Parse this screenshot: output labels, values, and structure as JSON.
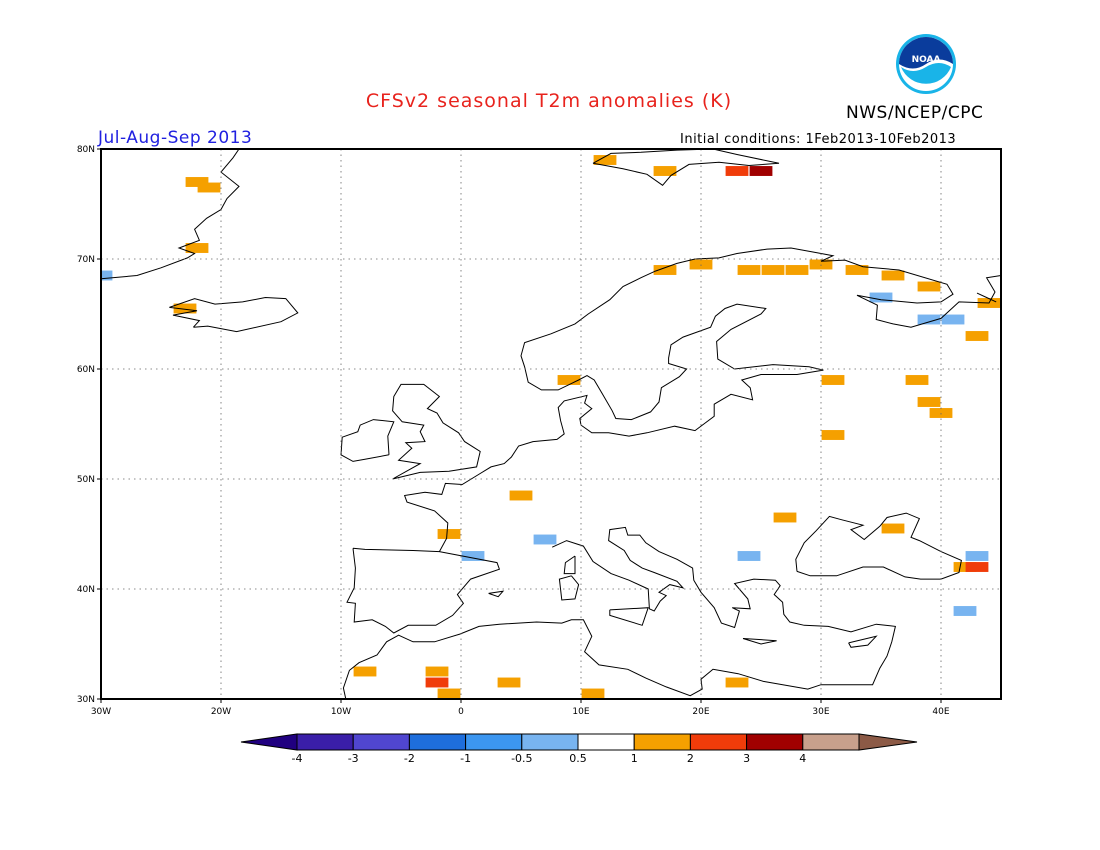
{
  "header": {
    "title": "CFSv2 seasonal T2m anomalies (K)",
    "season": "Jul-Aug-Sep 2013",
    "agency": "NWS/NCEP/CPC",
    "initial_conditions": "Initial conditions: 1Feb2013-10Feb2013",
    "logo_text": "NOAA"
  },
  "map": {
    "lon_range": [
      -30,
      45
    ],
    "lat_range": [
      30,
      80
    ],
    "lat_ticks": [
      "30N",
      "40N",
      "50N",
      "60N",
      "70N",
      "80N"
    ],
    "lon_ticks": [
      "30W",
      "20W",
      "10W",
      "0",
      "10E",
      "20E",
      "30E",
      "40E"
    ],
    "grid": "dotted",
    "anomaly_cells": [
      {
        "lon": -22,
        "lat": 77,
        "v": 0.7
      },
      {
        "lon": -21,
        "lat": 76.5,
        "v": 0.7
      },
      {
        "lon": -22,
        "lat": 71,
        "v": 0.7
      },
      {
        "lon": -23,
        "lat": 65.5,
        "v": 0.7
      },
      {
        "lon": -30,
        "lat": 68.5,
        "v": -0.7
      },
      {
        "lon": 12,
        "lat": 79,
        "v": 0.7
      },
      {
        "lon": 17,
        "lat": 78,
        "v": 0.7
      },
      {
        "lon": 23,
        "lat": 78,
        "v": 1.5
      },
      {
        "lon": 25,
        "lat": 78,
        "v": 2.5
      },
      {
        "lon": 17,
        "lat": 69,
        "v": 0.7
      },
      {
        "lon": 20,
        "lat": 69.5,
        "v": 0.7
      },
      {
        "lon": 24,
        "lat": 69,
        "v": 0.7
      },
      {
        "lon": 26,
        "lat": 69,
        "v": 0.7
      },
      {
        "lon": 28,
        "lat": 69,
        "v": 0.7
      },
      {
        "lon": 30,
        "lat": 69.5,
        "v": 0.7
      },
      {
        "lon": 33,
        "lat": 69,
        "v": 0.7
      },
      {
        "lon": 36,
        "lat": 68.5,
        "v": 0.7
      },
      {
        "lon": 39,
        "lat": 67.5,
        "v": 0.7
      },
      {
        "lon": 44,
        "lat": 66,
        "v": 0.7
      },
      {
        "lon": 43,
        "lat": 63,
        "v": 0.7
      },
      {
        "lon": 35,
        "lat": 66.5,
        "v": -0.7
      },
      {
        "lon": 39,
        "lat": 64.5,
        "v": -0.7
      },
      {
        "lon": 41,
        "lat": 64.5,
        "v": -0.7
      },
      {
        "lon": 9,
        "lat": 59,
        "v": 0.7
      },
      {
        "lon": 31,
        "lat": 59,
        "v": 0.7
      },
      {
        "lon": 38,
        "lat": 59,
        "v": 0.7
      },
      {
        "lon": 39,
        "lat": 57,
        "v": 0.7
      },
      {
        "lon": 40,
        "lat": 56,
        "v": 0.7
      },
      {
        "lon": 31,
        "lat": 54,
        "v": 0.7
      },
      {
        "lon": 5,
        "lat": 48.5,
        "v": 0.7
      },
      {
        "lon": 27,
        "lat": 46.5,
        "v": 0.7
      },
      {
        "lon": 36,
        "lat": 45.5,
        "v": 0.7
      },
      {
        "lon": -1,
        "lat": 45,
        "v": 0.7
      },
      {
        "lon": 1,
        "lat": 43,
        "v": -0.7
      },
      {
        "lon": 7,
        "lat": 44.5,
        "v": -0.7
      },
      {
        "lon": 24,
        "lat": 43,
        "v": -0.7
      },
      {
        "lon": 43,
        "lat": 43,
        "v": -0.7
      },
      {
        "lon": 42,
        "lat": 42,
        "v": 0.7
      },
      {
        "lon": 43,
        "lat": 42,
        "v": 1.5
      },
      {
        "lon": 42,
        "lat": 38,
        "v": -0.7
      },
      {
        "lon": -8,
        "lat": 32.5,
        "v": 0.7
      },
      {
        "lon": -2,
        "lat": 32.5,
        "v": 0.7
      },
      {
        "lon": -2,
        "lat": 31.5,
        "v": 1.5
      },
      {
        "lon": -1,
        "lat": 30.5,
        "v": 0.7
      },
      {
        "lon": 4,
        "lat": 31.5,
        "v": 0.7
      },
      {
        "lon": 11,
        "lat": 30.5,
        "v": 0.7
      },
      {
        "lon": 23,
        "lat": 31.5,
        "v": 0.7
      }
    ]
  },
  "colorbar": {
    "labels": [
      "-4",
      "-3",
      "-2",
      "-1",
      "-0.5",
      "0.5",
      "1",
      "2",
      "3",
      "4"
    ],
    "colors": [
      "#3a1ea8",
      "#5046d0",
      "#1e6edc",
      "#3c96f0",
      "#78b4f0",
      "#ffffff",
      "#f5a000",
      "#f03c0a",
      "#a00000",
      "#c8a08c"
    ],
    "end_low_color": "#200080",
    "end_high_color": "#8c5a46"
  }
}
